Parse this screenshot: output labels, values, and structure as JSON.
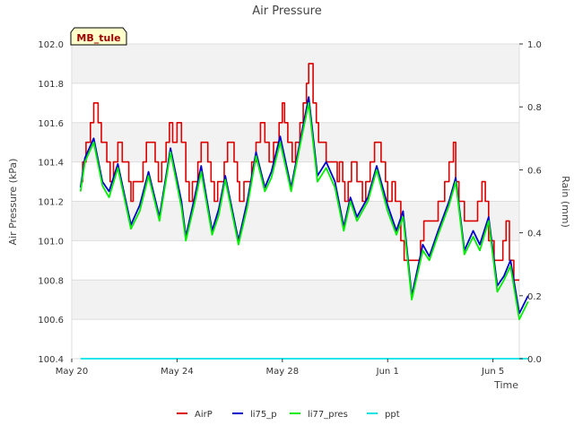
{
  "chart_data": {
    "type": "line",
    "title": "Air Pressure",
    "xlabel": "Time",
    "ylabel": "Air Pressure (kPa)",
    "y2label": "Rain (mm)",
    "site_label": "MB_tule",
    "ylim": [
      100.4,
      102.0
    ],
    "y2lim": [
      0.0,
      1.0
    ],
    "xlim": [
      "2024-05-20",
      "2024-06-06"
    ],
    "x_ticks": [
      {
        "date": "2024-05-20",
        "label": "May 20"
      },
      {
        "date": "2024-05-24",
        "label": "May 24"
      },
      {
        "date": "2024-05-28",
        "label": "May 28"
      },
      {
        "date": "2024-06-01",
        "label": "Jun 1"
      },
      {
        "date": "2024-06-05",
        "label": "Jun 5"
      }
    ],
    "y_ticks": [
      "100.4",
      "100.6",
      "100.8",
      "101.0",
      "101.2",
      "101.4",
      "101.6",
      "101.8",
      "102.0"
    ],
    "y2_ticks": [
      "0.0",
      "0.2",
      "0.4",
      "0.6",
      "0.8",
      "1.0"
    ],
    "grid": "horizontal",
    "legend_position": "bottom",
    "series": [
      {
        "name": "AirP",
        "color": "#dd0000",
        "axis": "left",
        "step": true,
        "points": [
          [
            "2024-05-20T08:00",
            101.3
          ],
          [
            "2024-05-20T10:00",
            101.4
          ],
          [
            "2024-05-20T13:00",
            101.5
          ],
          [
            "2024-05-20T17:00",
            101.6
          ],
          [
            "2024-05-20T20:00",
            101.7
          ],
          [
            "2024-05-21T00:00",
            101.6
          ],
          [
            "2024-05-21T03:00",
            101.5
          ],
          [
            "2024-05-21T08:00",
            101.4
          ],
          [
            "2024-05-21T11:00",
            101.3
          ],
          [
            "2024-05-21T14:00",
            101.4
          ],
          [
            "2024-05-21T18:00",
            101.5
          ],
          [
            "2024-05-21T22:00",
            101.4
          ],
          [
            "2024-05-22T04:00",
            101.3
          ],
          [
            "2024-05-22T06:00",
            101.2
          ],
          [
            "2024-05-22T08:00",
            101.3
          ],
          [
            "2024-05-22T17:00",
            101.4
          ],
          [
            "2024-05-22T20:00",
            101.5
          ],
          [
            "2024-05-23T04:00",
            101.4
          ],
          [
            "2024-05-23T07:00",
            101.3
          ],
          [
            "2024-05-23T10:00",
            101.4
          ],
          [
            "2024-05-23T14:00",
            101.5
          ],
          [
            "2024-05-23T17:00",
            101.6
          ],
          [
            "2024-05-23T20:00",
            101.5
          ],
          [
            "2024-05-24T00:00",
            101.6
          ],
          [
            "2024-05-24T04:00",
            101.5
          ],
          [
            "2024-05-24T08:00",
            101.3
          ],
          [
            "2024-05-24T11:00",
            101.2
          ],
          [
            "2024-05-24T14:00",
            101.3
          ],
          [
            "2024-05-24T19:00",
            101.4
          ],
          [
            "2024-05-24T22:00",
            101.5
          ],
          [
            "2024-05-25T04:00",
            101.4
          ],
          [
            "2024-05-25T07:00",
            101.3
          ],
          [
            "2024-05-25T10:00",
            101.2
          ],
          [
            "2024-05-25T13:00",
            101.3
          ],
          [
            "2024-05-25T19:00",
            101.4
          ],
          [
            "2024-05-25T22:00",
            101.5
          ],
          [
            "2024-05-26T04:00",
            101.4
          ],
          [
            "2024-05-26T07:00",
            101.3
          ],
          [
            "2024-05-26T09:00",
            101.2
          ],
          [
            "2024-05-26T13:00",
            101.3
          ],
          [
            "2024-05-26T20:00",
            101.4
          ],
          [
            "2024-05-27T00:00",
            101.5
          ],
          [
            "2024-05-27T04:00",
            101.6
          ],
          [
            "2024-05-27T08:00",
            101.5
          ],
          [
            "2024-05-27T12:00",
            101.4
          ],
          [
            "2024-05-27T16:00",
            101.5
          ],
          [
            "2024-05-27T21:00",
            101.6
          ],
          [
            "2024-05-28T00:00",
            101.7
          ],
          [
            "2024-05-28T02:00",
            101.6
          ],
          [
            "2024-05-28T05:00",
            101.5
          ],
          [
            "2024-05-28T09:00",
            101.4
          ],
          [
            "2024-05-28T12:00",
            101.5
          ],
          [
            "2024-05-28T16:00",
            101.6
          ],
          [
            "2024-05-28T19:00",
            101.7
          ],
          [
            "2024-05-28T22:00",
            101.8
          ],
          [
            "2024-05-29T00:00",
            101.9
          ],
          [
            "2024-05-29T04:00",
            101.7
          ],
          [
            "2024-05-29T07:00",
            101.6
          ],
          [
            "2024-05-29T09:00",
            101.5
          ],
          [
            "2024-05-29T16:00",
            101.4
          ],
          [
            "2024-05-30T02:00",
            101.3
          ],
          [
            "2024-05-30T04:00",
            101.4
          ],
          [
            "2024-05-30T07:00",
            101.3
          ],
          [
            "2024-05-30T09:00",
            101.2
          ],
          [
            "2024-05-30T12:00",
            101.3
          ],
          [
            "2024-05-30T15:00",
            101.4
          ],
          [
            "2024-05-30T20:00",
            101.3
          ],
          [
            "2024-05-31T01:00",
            101.2
          ],
          [
            "2024-05-31T04:00",
            101.3
          ],
          [
            "2024-05-31T08:00",
            101.4
          ],
          [
            "2024-05-31T12:00",
            101.5
          ],
          [
            "2024-05-31T18:00",
            101.4
          ],
          [
            "2024-05-31T22:00",
            101.3
          ],
          [
            "2024-06-01T00:00",
            101.2
          ],
          [
            "2024-06-01T04:00",
            101.3
          ],
          [
            "2024-06-01T07:00",
            101.2
          ],
          [
            "2024-06-01T12:00",
            101.0
          ],
          [
            "2024-06-01T15:00",
            100.9
          ],
          [
            "2024-06-02T06:00",
            101.0
          ],
          [
            "2024-06-02T09:00",
            101.1
          ],
          [
            "2024-06-02T22:00",
            101.2
          ],
          [
            "2024-06-03T04:00",
            101.3
          ],
          [
            "2024-06-03T08:00",
            101.4
          ],
          [
            "2024-06-03T12:00",
            101.5
          ],
          [
            "2024-06-03T14:00",
            101.3
          ],
          [
            "2024-06-03T17:00",
            101.2
          ],
          [
            "2024-06-03T22:00",
            101.1
          ],
          [
            "2024-06-04T10:00",
            101.2
          ],
          [
            "2024-06-04T14:00",
            101.3
          ],
          [
            "2024-06-04T17:00",
            101.2
          ],
          [
            "2024-06-04T20:00",
            101.0
          ],
          [
            "2024-06-05T01:00",
            100.9
          ],
          [
            "2024-06-05T09:00",
            101.0
          ],
          [
            "2024-06-05T12:00",
            101.1
          ],
          [
            "2024-06-05T15:00",
            100.9
          ],
          [
            "2024-06-05T19:00",
            100.8
          ],
          [
            "2024-06-06T00:00",
            100.8
          ]
        ]
      },
      {
        "name": "li75_p",
        "color": "#0000cc",
        "axis": "left",
        "step": false,
        "points": [
          [
            "2024-05-20T08:00",
            101.27
          ],
          [
            "2024-05-20T12:00",
            101.42
          ],
          [
            "2024-05-20T20:00",
            101.52
          ],
          [
            "2024-05-21T04:00",
            101.3
          ],
          [
            "2024-05-21T10:00",
            101.25
          ],
          [
            "2024-05-21T18:00",
            101.39
          ],
          [
            "2024-05-22T06:00",
            101.08
          ],
          [
            "2024-05-22T14:00",
            101.18
          ],
          [
            "2024-05-22T22:00",
            101.35
          ],
          [
            "2024-05-23T08:00",
            101.12
          ],
          [
            "2024-05-23T18:00",
            101.47
          ],
          [
            "2024-05-24T04:00",
            101.2
          ],
          [
            "2024-05-24T08:00",
            101.02
          ],
          [
            "2024-05-24T16:00",
            101.22
          ],
          [
            "2024-05-24T22:00",
            101.38
          ],
          [
            "2024-05-25T08:00",
            101.05
          ],
          [
            "2024-05-25T14:00",
            101.16
          ],
          [
            "2024-05-25T20:00",
            101.33
          ],
          [
            "2024-05-26T08:00",
            101.0
          ],
          [
            "2024-05-26T16:00",
            101.2
          ],
          [
            "2024-05-27T00:00",
            101.45
          ],
          [
            "2024-05-27T08:00",
            101.27
          ],
          [
            "2024-05-27T14:00",
            101.35
          ],
          [
            "2024-05-27T22:00",
            101.53
          ],
          [
            "2024-05-28T08:00",
            101.27
          ],
          [
            "2024-05-28T16:00",
            101.5
          ],
          [
            "2024-05-29T00:00",
            101.73
          ],
          [
            "2024-05-29T08:00",
            101.33
          ],
          [
            "2024-05-29T16:00",
            101.4
          ],
          [
            "2024-05-30T00:00",
            101.3
          ],
          [
            "2024-05-30T08:00",
            101.07
          ],
          [
            "2024-05-30T14:00",
            101.22
          ],
          [
            "2024-05-30T20:00",
            101.12
          ],
          [
            "2024-05-31T06:00",
            101.22
          ],
          [
            "2024-05-31T14:00",
            101.38
          ],
          [
            "2024-06-01T00:00",
            101.18
          ],
          [
            "2024-06-01T08:00",
            101.05
          ],
          [
            "2024-06-01T14:00",
            101.15
          ],
          [
            "2024-06-01T22:00",
            100.72
          ],
          [
            "2024-06-02T08:00",
            100.98
          ],
          [
            "2024-06-02T14:00",
            100.92
          ],
          [
            "2024-06-02T22:00",
            101.05
          ],
          [
            "2024-06-03T08:00",
            101.2
          ],
          [
            "2024-06-03T14:00",
            101.32
          ],
          [
            "2024-06-03T22:00",
            100.95
          ],
          [
            "2024-06-04T06:00",
            101.05
          ],
          [
            "2024-06-04T12:00",
            100.98
          ],
          [
            "2024-06-04T20:00",
            101.12
          ],
          [
            "2024-06-05T04:00",
            100.77
          ],
          [
            "2024-06-05T10:00",
            100.82
          ],
          [
            "2024-06-05T16:00",
            100.9
          ],
          [
            "2024-06-06T00:00",
            100.63
          ],
          [
            "2024-06-06T08:00",
            100.72
          ]
        ]
      },
      {
        "name": "li77_pres",
        "color": "#00ee00",
        "axis": "left",
        "step": false,
        "points": [
          [
            "2024-05-20T08:00",
            101.25
          ],
          [
            "2024-05-20T12:00",
            101.4
          ],
          [
            "2024-05-20T20:00",
            101.5
          ],
          [
            "2024-05-21T04:00",
            101.28
          ],
          [
            "2024-05-21T10:00",
            101.22
          ],
          [
            "2024-05-21T18:00",
            101.37
          ],
          [
            "2024-05-22T06:00",
            101.06
          ],
          [
            "2024-05-22T14:00",
            101.15
          ],
          [
            "2024-05-22T22:00",
            101.33
          ],
          [
            "2024-05-23T08:00",
            101.1
          ],
          [
            "2024-05-23T18:00",
            101.45
          ],
          [
            "2024-05-24T04:00",
            101.17
          ],
          [
            "2024-05-24T08:00",
            101.0
          ],
          [
            "2024-05-24T16:00",
            101.19
          ],
          [
            "2024-05-24T22:00",
            101.35
          ],
          [
            "2024-05-25T08:00",
            101.03
          ],
          [
            "2024-05-25T14:00",
            101.13
          ],
          [
            "2024-05-25T20:00",
            101.31
          ],
          [
            "2024-05-26T08:00",
            100.98
          ],
          [
            "2024-05-26T16:00",
            101.17
          ],
          [
            "2024-05-27T00:00",
            101.43
          ],
          [
            "2024-05-27T08:00",
            101.25
          ],
          [
            "2024-05-27T14:00",
            101.32
          ],
          [
            "2024-05-27T22:00",
            101.5
          ],
          [
            "2024-05-28T08:00",
            101.25
          ],
          [
            "2024-05-28T16:00",
            101.48
          ],
          [
            "2024-05-29T00:00",
            101.7
          ],
          [
            "2024-05-29T08:00",
            101.3
          ],
          [
            "2024-05-29T16:00",
            101.37
          ],
          [
            "2024-05-30T00:00",
            101.27
          ],
          [
            "2024-05-30T08:00",
            101.05
          ],
          [
            "2024-05-30T14:00",
            101.2
          ],
          [
            "2024-05-30T20:00",
            101.1
          ],
          [
            "2024-05-31T06:00",
            101.2
          ],
          [
            "2024-05-31T14:00",
            101.36
          ],
          [
            "2024-06-01T00:00",
            101.15
          ],
          [
            "2024-06-01T08:00",
            101.03
          ],
          [
            "2024-06-01T14:00",
            101.12
          ],
          [
            "2024-06-01T22:00",
            100.7
          ],
          [
            "2024-06-02T08:00",
            100.95
          ],
          [
            "2024-06-02T14:00",
            100.9
          ],
          [
            "2024-06-02T22:00",
            101.03
          ],
          [
            "2024-06-03T08:00",
            101.18
          ],
          [
            "2024-06-03T14:00",
            101.3
          ],
          [
            "2024-06-03T22:00",
            100.93
          ],
          [
            "2024-06-04T06:00",
            101.02
          ],
          [
            "2024-06-04T12:00",
            100.95
          ],
          [
            "2024-06-04T20:00",
            101.1
          ],
          [
            "2024-06-05T04:00",
            100.74
          ],
          [
            "2024-06-05T10:00",
            100.8
          ],
          [
            "2024-06-05T16:00",
            100.87
          ],
          [
            "2024-06-06T00:00",
            100.6
          ],
          [
            "2024-06-06T08:00",
            100.69
          ]
        ]
      },
      {
        "name": "ppt",
        "color": "#00e5e5",
        "axis": "right",
        "step": false,
        "points": [
          [
            "2024-05-20T08:00",
            0.0
          ],
          [
            "2024-06-06T08:00",
            0.0
          ]
        ]
      }
    ]
  }
}
